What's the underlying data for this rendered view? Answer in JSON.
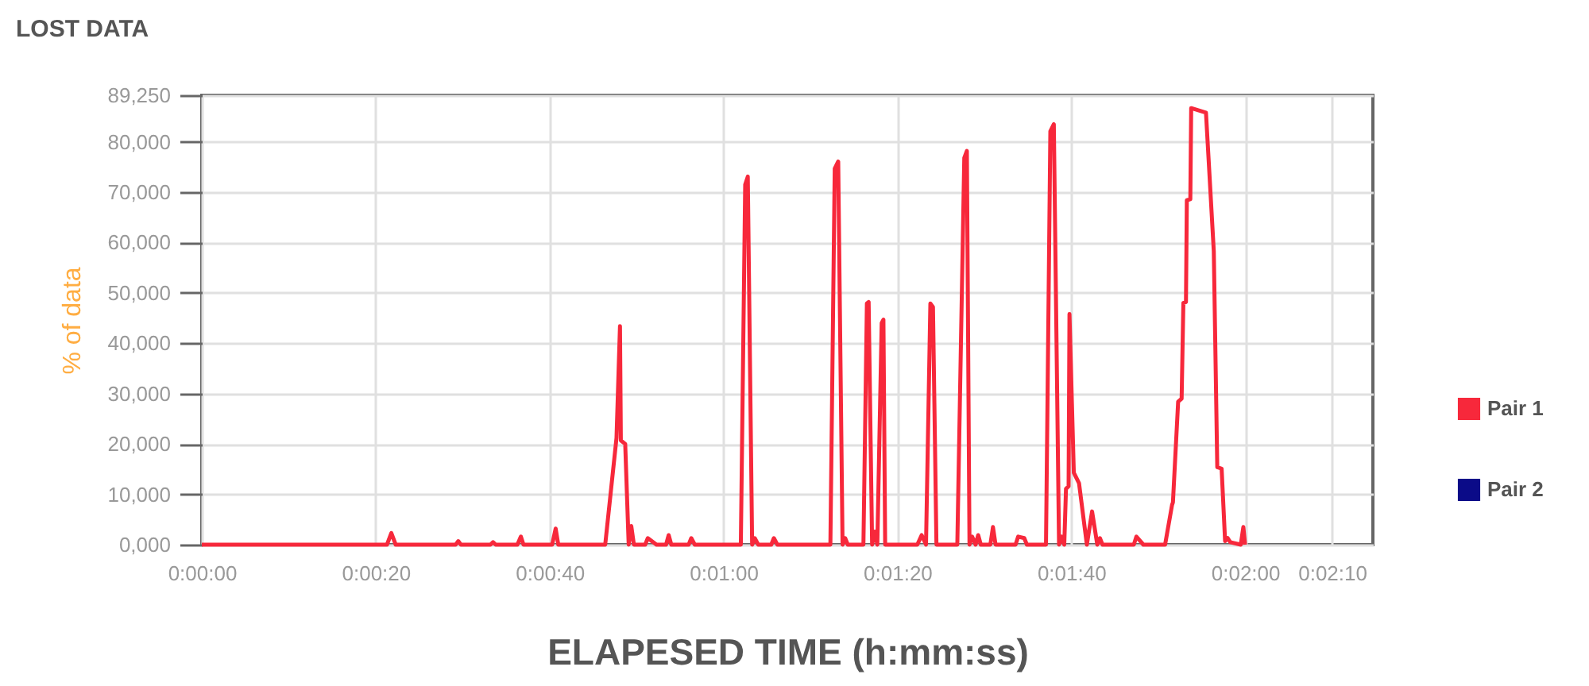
{
  "chart_data": {
    "type": "line",
    "title": "LOST DATA",
    "xlabel": "ELAPESED TIME (h:mm:ss)",
    "ylabel": "% of data",
    "xlim": [
      0,
      134.7
    ],
    "ylim": [
      0,
      89250
    ],
    "xticks": [
      {
        "value": 0,
        "label": "0:00:00"
      },
      {
        "value": 20,
        "label": "0:00:20"
      },
      {
        "value": 40,
        "label": "0:00:40"
      },
      {
        "value": 60,
        "label": "0:01:00"
      },
      {
        "value": 80,
        "label": "0:01:20"
      },
      {
        "value": 100,
        "label": "0:01:40"
      },
      {
        "value": 120,
        "label": "0:02:00"
      },
      {
        "value": 130,
        "label": "0:02:10"
      }
    ],
    "yticks": [
      {
        "value": 0,
        "label": "0,000"
      },
      {
        "value": 10000,
        "label": "10,000"
      },
      {
        "value": 20000,
        "label": "20,000"
      },
      {
        "value": 30000,
        "label": "30,000"
      },
      {
        "value": 40000,
        "label": "40,000"
      },
      {
        "value": 50000,
        "label": "50,000"
      },
      {
        "value": 60000,
        "label": "60,000"
      },
      {
        "value": 70000,
        "label": "70,000"
      },
      {
        "value": 80000,
        "label": "80,000"
      },
      {
        "value": 89250,
        "label": "89,250"
      }
    ],
    "grid": true,
    "legend": "right",
    "marker": "none",
    "line_style": "solid",
    "series": [
      {
        "name": "Pair 1",
        "color": "#f7283b",
        "x": [
          0,
          21.3,
          21.8,
          22.3,
          29.2,
          29.5,
          29.8,
          33.2,
          33.5,
          33.8,
          36.3,
          36.7,
          37.0,
          40.3,
          40.7,
          41.0,
          46.4,
          47.7,
          48.1,
          48.2,
          48.7,
          49.1,
          49.4,
          49.7,
          51.0,
          51.3,
          52.3,
          53.4,
          53.7,
          54.0,
          56.0,
          56.3,
          56.7,
          62.0,
          62.5,
          62.8,
          63.3,
          63.6,
          64.0,
          65.5,
          65.8,
          66.2,
          72.3,
          72.8,
          73.2,
          73.7,
          74.0,
          74.3,
          76.1,
          76.5,
          76.7,
          77.1,
          77.4,
          77.7,
          78.2,
          78.4,
          78.6,
          82.3,
          82.8,
          83.3,
          83.8,
          84.1,
          84.5,
          86.9,
          87.7,
          88.0,
          88.3,
          88.6,
          89.0,
          89.3,
          89.6,
          90.7,
          91.0,
          91.3,
          93.6,
          93.9,
          94.6,
          94.9,
          97.1,
          97.6,
          98.0,
          98.6,
          98.9,
          99.2,
          99.4,
          99.7,
          99.8,
          100.3,
          100.9,
          101.8,
          102.4,
          103.0,
          103.3,
          103.6,
          107.2,
          107.5,
          108.3,
          110.8,
          111.6,
          111.7,
          112.3,
          112.7,
          112.9,
          113.2,
          113.3,
          113.7,
          113.8,
          115.5,
          116.4,
          116.8,
          117.3,
          117.7,
          118.0,
          118.3,
          119.5,
          119.8,
          120.0
        ],
        "values": [
          0,
          0,
          2300,
          0,
          0,
          700,
          0,
          0,
          500,
          0,
          0,
          1600,
          0,
          0,
          3200,
          0,
          0,
          21200,
          43400,
          20700,
          20000,
          0,
          3700,
          0,
          0,
          1300,
          0,
          0,
          1900,
          0,
          0,
          1300,
          0,
          0,
          71500,
          73100,
          0,
          1300,
          0,
          0,
          1300,
          0,
          0,
          74700,
          76100,
          0,
          1300,
          0,
          0,
          47900,
          48200,
          0,
          2600,
          0,
          44000,
          44700,
          0,
          0,
          1900,
          0,
          47900,
          47200,
          0,
          0,
          76800,
          78200,
          0,
          1600,
          0,
          1900,
          0,
          0,
          3500,
          0,
          0,
          1600,
          1300,
          0,
          0,
          82100,
          83500,
          0,
          1600,
          0,
          11100,
          11600,
          45800,
          14300,
          12200,
          0,
          6600,
          0,
          1300,
          0,
          0,
          1600,
          0,
          0,
          7900,
          8400,
          28400,
          29000,
          48000,
          48200,
          68400,
          68600,
          86700,
          85800,
          58300,
          15400,
          15100,
          700,
          1300,
          500,
          0,
          3500,
          0
        ]
      },
      {
        "name": "Pair 2",
        "color": "#0b0b88"
      }
    ]
  }
}
